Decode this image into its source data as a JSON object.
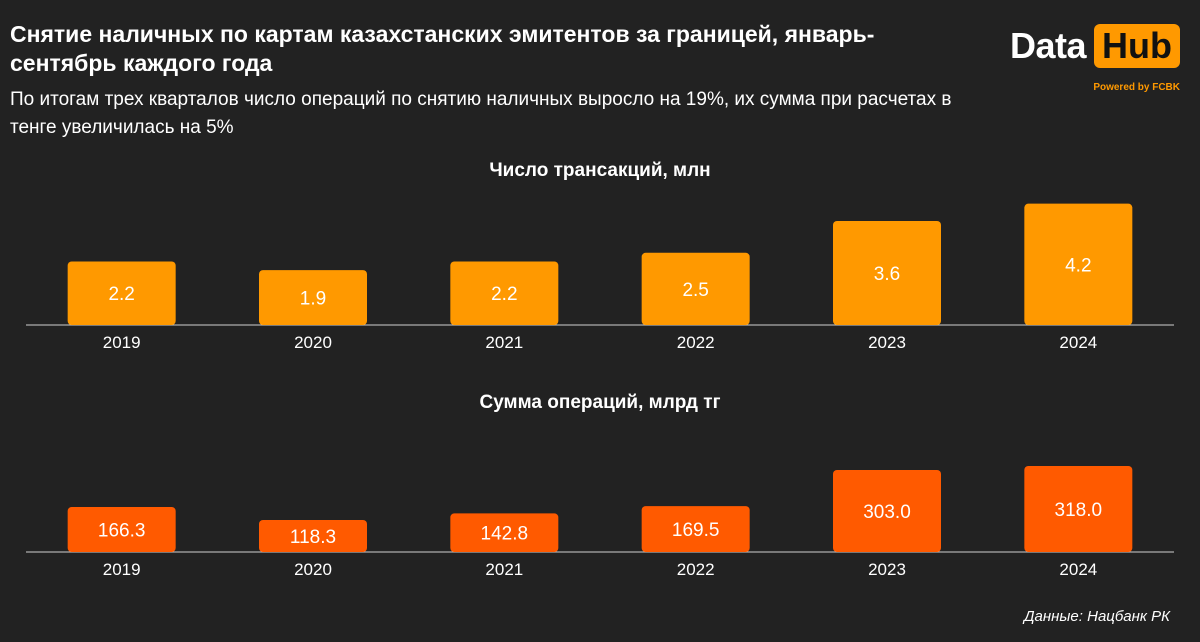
{
  "header": {
    "title": "Снятие наличных по картам казахстанских эмитентов за границей, январь-сентябрь каждого года",
    "subtitle": "По итогам трех кварталов число операций по снятию наличных выросло на 19%, их сумма при расчетах в тенге увеличилась на 5%"
  },
  "logo": {
    "data_text": "Data",
    "hub_text": "Hub",
    "powered": "Powered by FCBK"
  },
  "source": "Данные: Нацбанк РК",
  "colors": {
    "background": "#222222",
    "chart1_bar": "#ff9900",
    "chart2_bar": "#ff5a00",
    "accent": "#ff9900"
  },
  "chart_data": [
    {
      "type": "bar",
      "title": "Число трансакций, млн",
      "categories": [
        "2019",
        "2020",
        "2021",
        "2022",
        "2023",
        "2024"
      ],
      "values": [
        2.2,
        1.9,
        2.2,
        2.5,
        3.6,
        4.2
      ],
      "labels": [
        "2.2",
        "1.9",
        "2.2",
        "2.5",
        "3.6",
        "4.2"
      ],
      "ylim": [
        0,
        4.5
      ],
      "grid": false
    },
    {
      "type": "bar",
      "title": "Сумма операций, млрд тг",
      "categories": [
        "2019",
        "2020",
        "2021",
        "2022",
        "2023",
        "2024"
      ],
      "values": [
        166.3,
        118.3,
        142.8,
        169.5,
        303.0,
        318.0
      ],
      "labels": [
        "166.3",
        "118.3",
        "142.8",
        "169.5",
        "303.0",
        "318.0"
      ],
      "ylim": [
        0,
        340
      ],
      "grid": false
    }
  ]
}
